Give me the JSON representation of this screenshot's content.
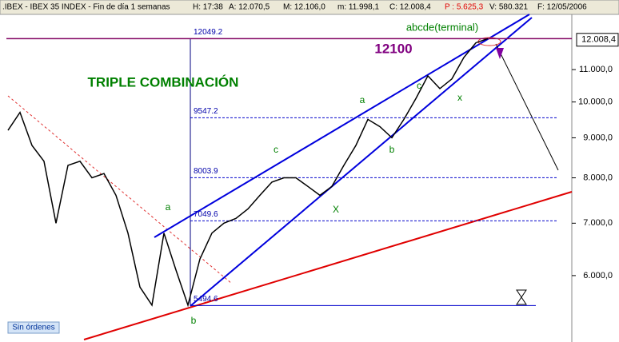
{
  "header": {
    "symbol": ".IBEX - IBEX 35 INDEX - Fin de día 1 semanas",
    "time": "H: 17:38",
    "open": "A: 12.070,5",
    "high": "M: 12.106,0",
    "low": "m: 11.998,1",
    "close": "C: 12.008,4",
    "change": "P : 5.625,3",
    "volume": "V: 580.321",
    "date": "F: 12/05/2006"
  },
  "chart_data": {
    "type": "line",
    "log_scale": true,
    "series": [
      {
        "name": "IBEX 35",
        "color": "#000000",
        "values": [
          9200,
          9700,
          8800,
          8400,
          7000,
          8300,
          8400,
          8000,
          8100,
          7600,
          6800,
          5800,
          5500,
          6800,
          6100,
          5500,
          6300,
          6800,
          7000,
          7100,
          7300,
          7600,
          7900,
          8000,
          8000,
          7800,
          7600,
          7800,
          8300,
          8800,
          9500,
          9300,
          9000,
          9500,
          10100,
          10800,
          10400,
          10700,
          11400,
          11900,
          12050
        ]
      }
    ],
    "ylim": [
      4970,
      12940
    ],
    "yticks": [
      {
        "value": 6000,
        "label": "6.000,0"
      },
      {
        "value": 7000,
        "label": "7.000,0"
      },
      {
        "value": 8000,
        "label": "8.000,0"
      },
      {
        "value": 9000,
        "label": "9.000,0"
      },
      {
        "value": 10000,
        "label": "10.000,0"
      },
      {
        "value": 11000,
        "label": "11.000,0"
      }
    ],
    "last_price": {
      "value": 12008.4,
      "label": "12.008,4"
    },
    "levels": [
      12049.2,
      9547.2,
      8003.9,
      7049.6,
      5494.6
    ],
    "annotations": [
      "TRIPLE COMBINACIÓN",
      "12100",
      "abcde(terminal)",
      "a",
      "b",
      "c",
      "X",
      "a",
      "b",
      "c",
      "x"
    ]
  },
  "status_button": "Sin órdenes"
}
